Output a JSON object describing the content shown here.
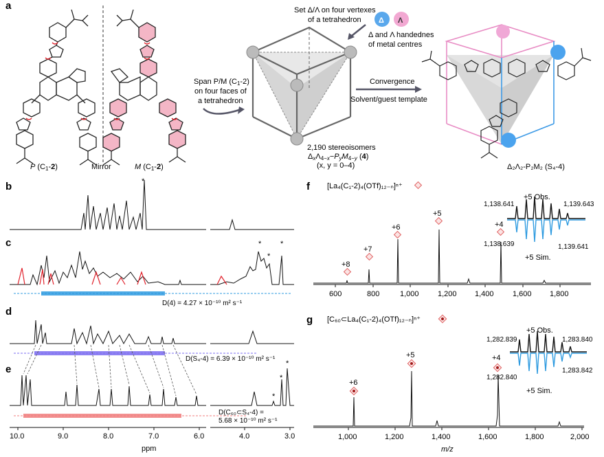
{
  "panels": {
    "a": "a",
    "b": "b",
    "c": "c",
    "d": "d",
    "e": "e",
    "f": "f",
    "g": "g"
  },
  "panel_a": {
    "left_label_pre": "P",
    "left_label_mid": " (C",
    "left_label_sub": "1",
    "left_label_dash": "-",
    "left_label_bold": "2",
    "left_label_post": ")",
    "mirror": "Mirror",
    "right_label_pre": "M",
    "right_label_mid": " (C",
    "right_label_sub": "1",
    "right_label_dash": "-",
    "right_label_bold": "2",
    "right_label_post": ")",
    "span_line1": "Span P/M (C",
    "span_sub": "1",
    "span_line1b": "-2)",
    "span_line2": "on four faces of",
    "span_line3": "a tetrahedron",
    "set_line1": "Set Δ/Λ on four vertexes",
    "set_line2": "of a tetrahedron",
    "delta": "Δ",
    "lambda": "Λ",
    "hand_line1": "Δ and Λ handednes",
    "hand_line2": "of metal centres",
    "convergence": "Convergence",
    "solvent": "Solvent/guest template",
    "stereo_line1": "2,190  stereoisomers",
    "stereo_line2": "Δ",
    "stereo_line3": "(x, y = 0–4)",
    "product_label": "Δ₂Λ₂-P₂M₂ (S₄-4)"
  },
  "nmr": {
    "c_diffusion": "D(4) = 4.27 × 10⁻¹⁰ m² s⁻¹",
    "d_diffusion": "D(S₄-4) = 6.39 × 10⁻¹⁰ m² s⁻¹",
    "e_diffusion_1": "D(C₆₀⊂S₄-4) =",
    "e_diffusion_2": "5.68 × 10⁻¹⁰ m² s⁻¹",
    "star": "*",
    "xlabel": "ppm",
    "ticks": [
      "10.0",
      "9.0",
      "8.0",
      "7.0",
      "6.0",
      "4.0",
      "3.0"
    ],
    "colors": {
      "black": "#111111",
      "red": "#e0202a",
      "blue": "#2f9be0",
      "purple": "#7b6cf0",
      "salmon": "#f07c7c"
    }
  },
  "ms_f": {
    "title": "[La₄(C₁-2)₄(OTf)₁₂₋ₙ]ⁿ⁺",
    "charges": [
      "+8",
      "+7",
      "+6",
      "+5",
      "+4"
    ],
    "obs": "+5 Obs.",
    "sim": "+5 Sim.",
    "obs_left": "1,138.641",
    "obs_right": "1,139.643",
    "sim_left": "1,138.639",
    "sim_right": "1,139.641",
    "ticks": [
      "600",
      "800",
      "1,000",
      "1,200",
      "1,400",
      "1,600",
      "1,800"
    ]
  },
  "ms_g": {
    "title": "[C₆₀⊂La₄(C₁-2)₄(OTf)₁₂₋ₙ]ⁿ⁺",
    "charges": [
      "+6",
      "+5",
      "+4"
    ],
    "obs": "+5 Obs.",
    "sim": "+5 Sim.",
    "obs_left": "1,282.839",
    "obs_right": "1,283.840",
    "sim_left": "1,282.840",
    "sim_right": "1,283.842",
    "ticks": [
      "1,000",
      "1,200",
      "1,400",
      "1,600",
      "1,800",
      "2,000"
    ],
    "xlabel": "m/z"
  }
}
